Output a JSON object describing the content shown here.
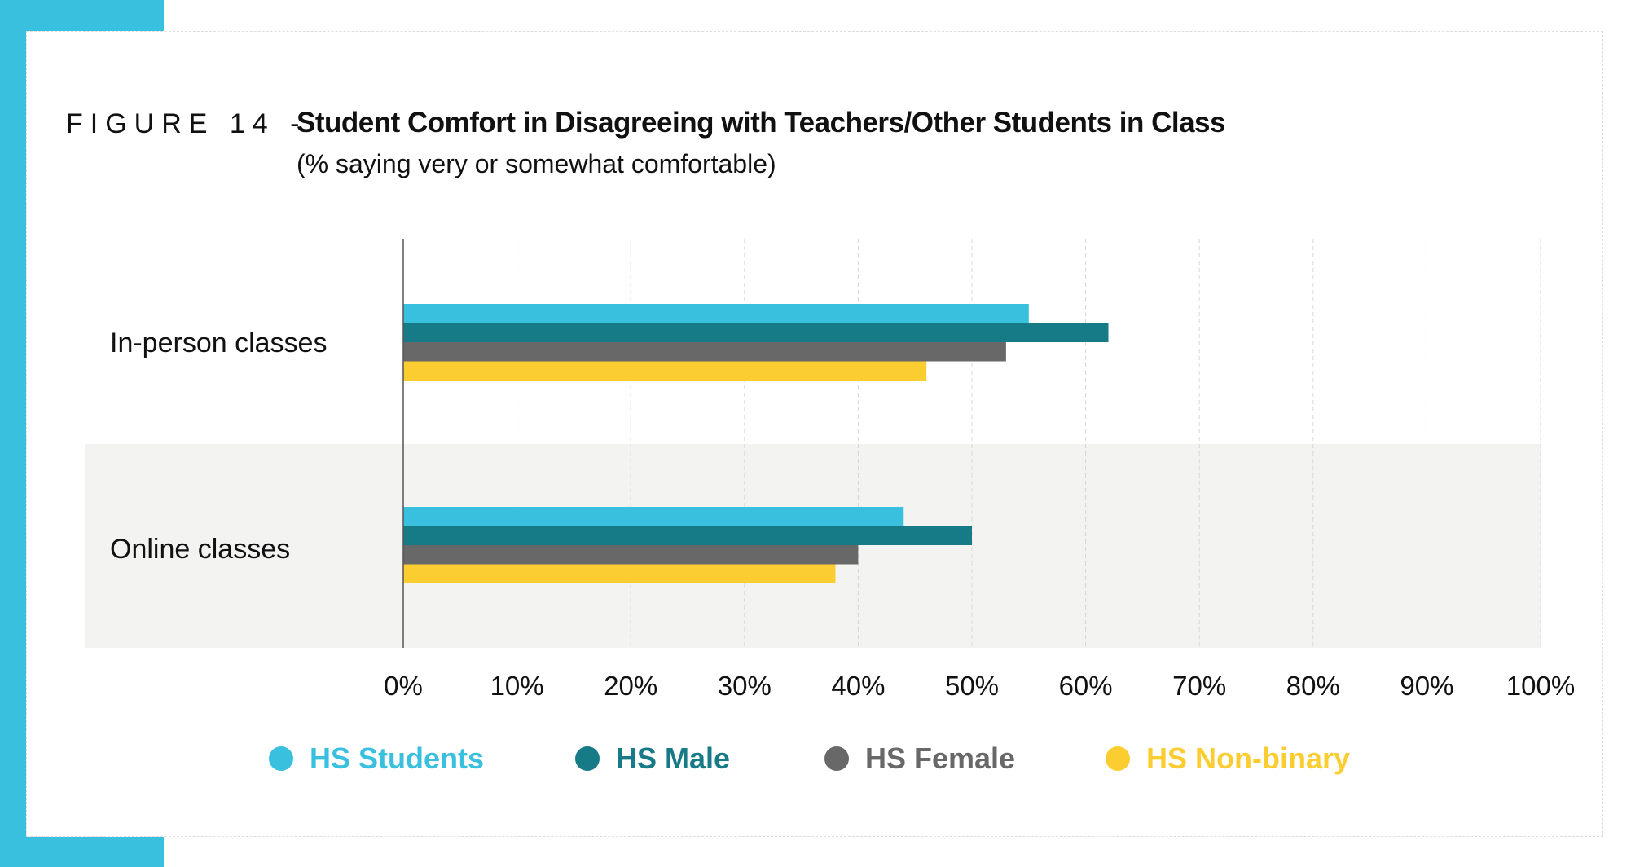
{
  "header": {
    "figure_label": "FIGURE 14 -",
    "title": "Student Comfort in Disagreeing with Teachers/Other Students in Class",
    "subtitle": "(% saying very or somewhat comfortable)"
  },
  "colors": {
    "accent": "#38C0DE",
    "band": "#F3F3F2"
  },
  "chart_data": {
    "type": "bar",
    "orientation": "horizontal",
    "title": "Student Comfort in Disagreeing with Teachers/Other Students in Class",
    "subtitle": "(% saying very or somewhat comfortable)",
    "categories": [
      "In-person classes",
      "Online classes"
    ],
    "series": [
      {
        "name": "HS Students",
        "color": "#38C0DE",
        "values": [
          55,
          44
        ]
      },
      {
        "name": "HS Male",
        "color": "#177A87",
        "values": [
          62,
          50
        ]
      },
      {
        "name": "HS Female",
        "color": "#686868",
        "values": [
          53,
          40
        ]
      },
      {
        "name": "HS Non-binary",
        "color": "#FCCD30",
        "values": [
          46,
          38
        ]
      }
    ],
    "xlim": [
      0,
      100
    ],
    "xticks": [
      "0%",
      "10%",
      "20%",
      "30%",
      "40%",
      "50%",
      "60%",
      "70%",
      "80%",
      "90%",
      "100%"
    ],
    "grid": true,
    "legend": "bottom"
  }
}
